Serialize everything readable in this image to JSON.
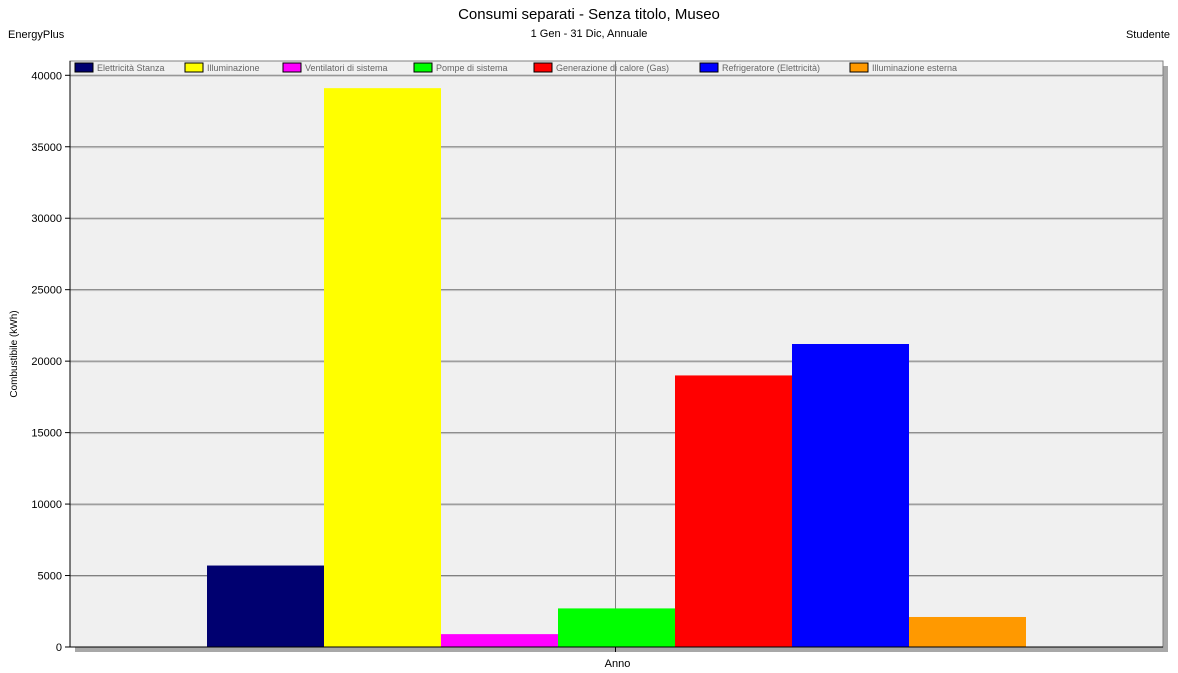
{
  "header": {
    "left": "EnergyPlus",
    "right": "Studente"
  },
  "chart_data": {
    "type": "bar",
    "title": "Consumi separati - Senza titolo, Museo",
    "subtitle": "1 Gen - 31 Dic, Annuale",
    "xlabel": "Anno",
    "ylabel": "Combustibile (kWh)",
    "ylim": [
      0,
      41000
    ],
    "yticks": [
      0,
      5000,
      10000,
      15000,
      20000,
      25000,
      30000,
      35000,
      40000
    ],
    "grid": true,
    "legend_position": "top",
    "categories": [
      "Anno"
    ],
    "series": [
      {
        "name": "Elettricità Stanza",
        "color": "#000070",
        "values": [
          5700
        ]
      },
      {
        "name": "Illuminazione",
        "color": "#ffff00",
        "values": [
          39100
        ]
      },
      {
        "name": "Ventilatori di sistema",
        "color": "#ff00ff",
        "values": [
          900
        ]
      },
      {
        "name": "Pompe di sistema",
        "color": "#00ff00",
        "values": [
          2700
        ]
      },
      {
        "name": "Generazione di calore (Gas)",
        "color": "#ff0000",
        "values": [
          19000
        ]
      },
      {
        "name": "Refrigeratore (Elettricità)",
        "color": "#0000ff",
        "values": [
          21200
        ]
      },
      {
        "name": "Illuminazione esterna",
        "color": "#ff9900",
        "values": [
          2100
        ]
      }
    ]
  }
}
